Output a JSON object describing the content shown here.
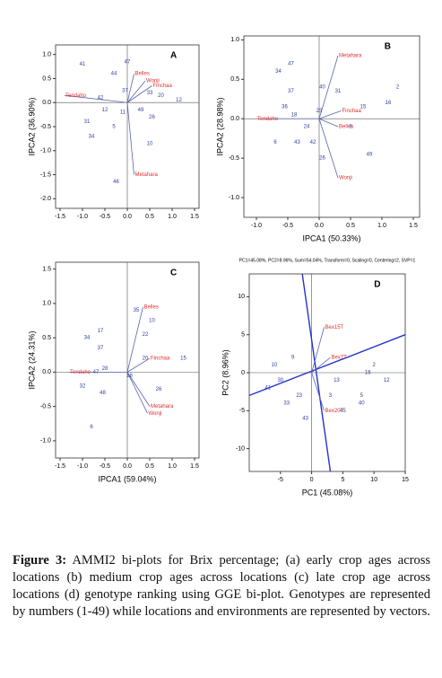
{
  "chart_data": [
    {
      "type": "biplot",
      "panel_label": "A",
      "ylabel": "IPCA2 (36.90%)",
      "xlim": [
        -1.6,
        1.6
      ],
      "ylim": [
        -2.2,
        1.2
      ],
      "xticks": [
        -1.5,
        {
          "value": -1,
          "label": "-1.0"
        },
        -0.5,
        {
          "value": 0,
          "label": "0.0"
        },
        0.5,
        {
          "value": 1,
          "label": "1.0"
        },
        1.5
      ],
      "yticks": [
        {
          "value": 1,
          "label": "1.0"
        },
        0.5,
        {
          "value": 0,
          "label": "0.0"
        },
        -0.5,
        {
          "value": -1,
          "label": "-1.0"
        },
        -1.5,
        {
          "value": -2,
          "label": "-2.0"
        }
      ],
      "points": {
        "color": "#2f3fa0",
        "labels": [
          "41",
          "47",
          "44",
          "37",
          "42",
          "12",
          "31",
          "34",
          "5",
          "11",
          "49",
          "10",
          "20",
          "33",
          "26",
          "46",
          "12"
        ],
        "x": [
          -1.0,
          0.0,
          -0.3,
          -0.05,
          -0.6,
          -0.5,
          -0.9,
          -0.8,
          -0.3,
          -0.1,
          0.3,
          0.5,
          0.75,
          0.5,
          0.55,
          -0.25,
          1.15
        ],
        "y": [
          0.8,
          0.85,
          0.6,
          0.25,
          0.1,
          -0.15,
          -0.4,
          -0.7,
          -0.5,
          -0.2,
          -0.15,
          -0.85,
          0.15,
          0.2,
          -0.3,
          -1.65,
          0.05
        ]
      },
      "vectors": {
        "color": "#e03030",
        "labels": [
          "Tendaho",
          "Belles",
          "Wonji",
          "Finchaa",
          "Metahara"
        ],
        "x": [
          -1.4,
          0.15,
          0.4,
          0.55,
          0.15
        ],
        "y": [
          0.15,
          0.6,
          0.45,
          0.35,
          -1.5
        ]
      }
    },
    {
      "type": "biplot",
      "panel_label": "B",
      "xlabel": "IPCA1 (50.33%)",
      "ylabel": "IPCA2 (28.98%)",
      "xlim": [
        -1.2,
        1.6
      ],
      "ylim": [
        -1.25,
        1.05
      ],
      "xticks": [
        {
          "value": -1,
          "label": "-1.0"
        },
        -0.5,
        {
          "value": 0,
          "label": "0.0"
        },
        0.5,
        {
          "value": 1,
          "label": "1.0"
        },
        1.5
      ],
      "yticks": [
        {
          "value": 1,
          "label": "1.0"
        },
        0.5,
        {
          "value": 0,
          "label": "0.0"
        },
        -0.5,
        {
          "value": -1,
          "label": "-1.0"
        }
      ],
      "points": {
        "color": "#2f3fa0",
        "labels": [
          "47",
          "34",
          "37",
          "40",
          "31",
          "36",
          "18",
          "23",
          "24",
          "6",
          "43",
          "42",
          "15",
          "3",
          "2",
          "16",
          "49",
          "26"
        ],
        "x": [
          -0.45,
          -0.65,
          -0.45,
          0.05,
          0.3,
          -0.55,
          -0.4,
          0.0,
          -0.2,
          -0.7,
          -0.35,
          -0.1,
          0.7,
          0.5,
          1.25,
          1.1,
          0.8,
          0.05
        ],
        "y": [
          0.7,
          0.6,
          0.35,
          0.4,
          0.35,
          0.15,
          0.05,
          0.1,
          -0.1,
          -0.3,
          -0.3,
          -0.3,
          0.15,
          -0.1,
          0.4,
          0.2,
          -0.45,
          -0.5
        ]
      },
      "vectors": {
        "color": "#e03030",
        "labels": [
          "Metahara",
          "Tendaho",
          "Finchaa",
          "Belles",
          "Wonji"
        ],
        "x": [
          0.3,
          -1.0,
          0.35,
          0.3,
          0.3
        ],
        "y": [
          0.8,
          0.0,
          0.1,
          -0.1,
          -0.75
        ]
      }
    },
    {
      "type": "biplot",
      "panel_label": "C",
      "xlabel": "IPCA1 (59.04%)",
      "ylabel": "IPCA2 (24.31%)",
      "xlim": [
        -1.6,
        1.6
      ],
      "ylim": [
        -1.25,
        1.6
      ],
      "xticks": [
        -1.5,
        {
          "value": -1,
          "label": "-1.0"
        },
        -0.5,
        {
          "value": 0,
          "label": "0.0"
        },
        0.5,
        {
          "value": 1,
          "label": "1.0"
        },
        1.5
      ],
      "yticks": [
        1.5,
        {
          "value": 1,
          "label": "1.0"
        },
        0.5,
        {
          "value": 0,
          "label": "0.0"
        },
        -0.5,
        {
          "value": -1,
          "label": "-1.0"
        }
      ],
      "points": {
        "color": "#2f3fa0",
        "labels": [
          "35",
          "10",
          "17",
          "34",
          "37",
          "22",
          "47",
          "32",
          "48",
          "6",
          "15",
          "20",
          "26",
          "28",
          "18"
        ],
        "x": [
          0.2,
          0.55,
          -0.6,
          -0.9,
          -0.6,
          0.4,
          -0.7,
          -1.0,
          -0.55,
          -0.8,
          1.25,
          0.4,
          0.7,
          -0.5,
          0.05
        ],
        "y": [
          0.9,
          0.75,
          0.6,
          0.5,
          0.35,
          0.55,
          0.0,
          -0.2,
          -0.3,
          -0.8,
          0.2,
          0.2,
          -0.25,
          0.05,
          -0.05
        ]
      },
      "vectors": {
        "color": "#e03030",
        "labels": [
          "Belles",
          "Tendaho",
          "Finchaa",
          "Metahara",
          "Wonji"
        ],
        "x": [
          0.35,
          -1.3,
          0.5,
          0.5,
          0.45
        ],
        "y": [
          0.95,
          0.0,
          0.2,
          -0.5,
          -0.6
        ]
      }
    },
    {
      "type": "biplot",
      "panel_label": "D",
      "title": "PC1=45.08%, PC2=8.96%, Sum=54.04%, Transform=0, Scaling=0, Centering=2, SVP=1",
      "xlabel": "PC1 (45.08%)",
      "ylabel": "PC2 (8.96%)",
      "xlim": [
        -10,
        15
      ],
      "ylim": [
        -13,
        13
      ],
      "xticks": [
        -5,
        0,
        5,
        10,
        15
      ],
      "yticks": [
        10,
        5,
        0,
        -5,
        -10
      ],
      "points": {
        "color": "#2f3fa0",
        "labels": [
          "10",
          "41",
          "33",
          "23",
          "43",
          "9",
          "3",
          "16",
          "12",
          "5",
          "13",
          "40",
          "45",
          "30",
          "2"
        ],
        "x": [
          -6,
          -7,
          -4,
          -2,
          -1,
          -3,
          3,
          9,
          12,
          8,
          4,
          8,
          5,
          -5,
          10
        ],
        "y": [
          1,
          -2,
          -4,
          -3,
          -6,
          2,
          -3,
          0,
          -1,
          -3,
          -1,
          -4,
          -5,
          -1,
          1
        ]
      },
      "vectors": {
        "color": "#e03030",
        "labels": [
          "Bex15T",
          "Bex7T",
          "Bex20T"
        ],
        "x": [
          2,
          3,
          2
        ],
        "y": [
          6,
          2,
          -5
        ]
      }
    }
  ],
  "caption": {
    "label": "Figure 3:",
    "text": "AMMI2 bi-plots for Brix percentage; (a) early crop ages across locations (b) medium crop ages across locations (c) late crop age across locations (d) genotype ranking using GGE bi-plot. Genotypes are represented by numbers (1-49) while locations and environments are represented by vectors."
  }
}
